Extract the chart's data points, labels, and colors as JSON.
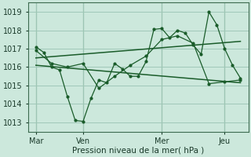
{
  "background_color": "#cce8dc",
  "grid_color": "#a0c8b8",
  "line_color": "#1a5c2a",
  "xlabel": "Pression niveau de la mer( hPa )",
  "ylim": [
    1012.5,
    1019.5
  ],
  "yticks": [
    1013,
    1014,
    1015,
    1016,
    1017,
    1018,
    1019
  ],
  "xlim": [
    0,
    14
  ],
  "xtick_labels": [
    "Mar",
    "Ven",
    "Mer",
    "Jeu"
  ],
  "xtick_positions": [
    0.5,
    3.5,
    8.5,
    12.5
  ],
  "vline_positions": [
    0.5,
    3.5,
    8.5,
    12.5
  ],
  "line1_x": [
    0.5,
    1.0,
    1.5,
    2.0,
    2.5,
    3.0,
    3.5,
    4.0,
    4.5,
    5.0,
    5.5,
    6.0,
    6.5,
    7.0,
    7.5,
    8.0,
    8.5,
    9.0,
    9.5,
    10.0,
    10.5,
    11.0,
    11.5,
    12.0,
    12.5,
    13.0,
    13.5
  ],
  "line1_y": [
    1017.1,
    1016.8,
    1016.0,
    1015.85,
    1014.4,
    1013.1,
    1013.05,
    1014.3,
    1015.3,
    1015.15,
    1016.2,
    1015.9,
    1015.5,
    1015.5,
    1016.3,
    1018.05,
    1018.1,
    1017.6,
    1018.0,
    1017.85,
    1017.2,
    1016.7,
    1019.0,
    1018.3,
    1017.0,
    1016.1,
    1015.4
  ],
  "line2_x": [
    0.5,
    1.5,
    2.5,
    3.5,
    4.5,
    5.5,
    6.5,
    7.5,
    8.5,
    9.5,
    10.5,
    11.5,
    12.5,
    13.5
  ],
  "line2_y": [
    1016.9,
    1016.2,
    1016.0,
    1016.2,
    1014.85,
    1015.5,
    1016.1,
    1016.6,
    1017.5,
    1017.7,
    1017.3,
    1015.1,
    1015.2,
    1015.3
  ],
  "line3_x": [
    0.5,
    13.5
  ],
  "line3_y": [
    1016.5,
    1017.4
  ],
  "line4_x": [
    0.5,
    13.5
  ],
  "line4_y": [
    1016.1,
    1015.15
  ]
}
